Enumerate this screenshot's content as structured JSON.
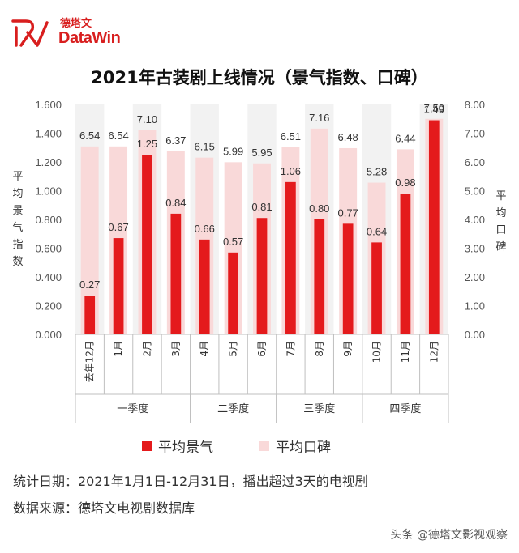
{
  "brand": {
    "cn": "德塔文",
    "en": "DataWin",
    "accent": "#d81e1e"
  },
  "title": "2021年古装剧上线情况（景气指数、口碑）",
  "chart_data": {
    "type": "bar",
    "title": "2021年古装剧上线情况（景气指数、口碑）",
    "categories": [
      "去年12月",
      "1月",
      "2月",
      "3月",
      "4月",
      "5月",
      "6月",
      "7月",
      "8月",
      "9月",
      "10月",
      "11月",
      "12月"
    ],
    "groups": [
      {
        "name": "一季度",
        "span": [
          0,
          3
        ]
      },
      {
        "name": "二季度",
        "span": [
          4,
          6
        ]
      },
      {
        "name": "三季度",
        "span": [
          7,
          9
        ]
      },
      {
        "name": "四季度",
        "span": [
          10,
          12
        ]
      }
    ],
    "series": [
      {
        "name": "平均景气",
        "axis": "left",
        "color": "#e41a1c",
        "values": [
          0.27,
          0.67,
          1.25,
          0.84,
          0.66,
          0.57,
          0.81,
          1.06,
          0.8,
          0.77,
          0.64,
          0.98,
          1.49
        ],
        "labels": [
          "0.27",
          "0.67",
          "1.25",
          "0.84",
          "0.66",
          "0.57",
          "0.81",
          "1.06",
          "0.80",
          "0.77",
          "0.64",
          "0.98",
          "1.49"
        ]
      },
      {
        "name": "平均口碑",
        "axis": "right",
        "color": "#f9d9d9",
        "values": [
          6.54,
          6.54,
          7.1,
          6.37,
          6.15,
          5.99,
          5.95,
          6.51,
          7.16,
          6.48,
          5.28,
          6.44,
          7.5
        ],
        "labels": [
          "6.54",
          "6.54",
          "7.10",
          "6.37",
          "6.15",
          "5.99",
          "5.95",
          "6.51",
          "7.16",
          "6.48",
          "5.28",
          "6.44",
          "7.50"
        ]
      }
    ],
    "ylabel": "平均景气指数",
    "ylabel_right": "平均口碑",
    "ylim": [
      0,
      1.6
    ],
    "ylim_right": [
      0,
      8
    ],
    "yticks": [
      "0.000",
      "0.200",
      "0.400",
      "0.600",
      "0.800",
      "1.000",
      "1.200",
      "1.400",
      "1.600"
    ],
    "yticks_right": [
      "0.00",
      "1.00",
      "2.00",
      "3.00",
      "4.00",
      "5.00",
      "6.00",
      "7.00",
      "8.00"
    ],
    "band_shading": true,
    "legend_position": "bottom"
  },
  "footer": {
    "stat_date": "统计日期：2021年1月1日-12月31日，播出超过3天的电视剧",
    "source": "数据来源：德塔文电视剧数据库"
  },
  "watermark": "头条 @德塔文影视观察"
}
